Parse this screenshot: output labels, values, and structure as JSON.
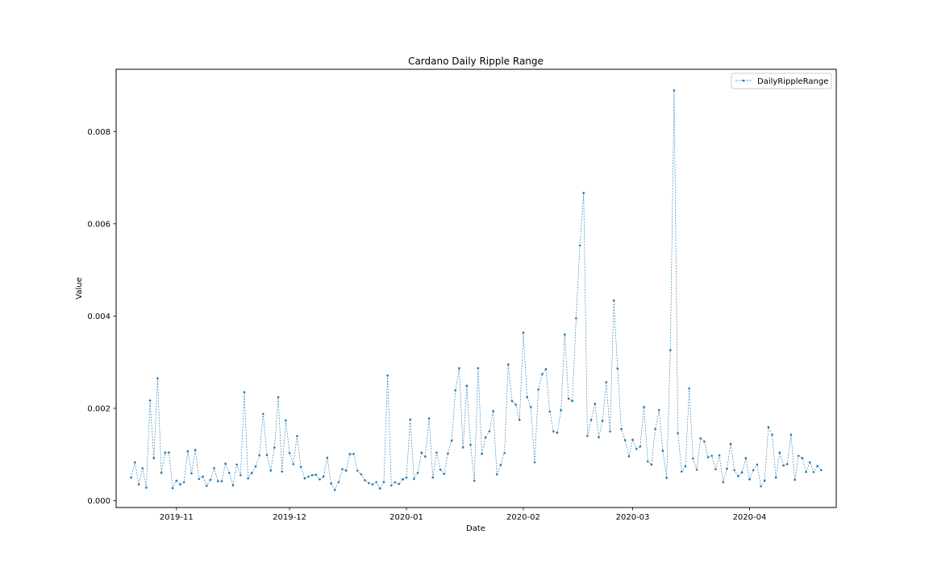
{
  "chart_data": {
    "type": "line",
    "title": "Cardano Daily Ripple Range",
    "xlabel": "Date",
    "ylabel": "Value",
    "ylim": [
      -0.00015,
      0.00935
    ],
    "xlim": [
      "2019-10-16",
      "2020-04-24"
    ],
    "x_start": "2019-10-20",
    "x_tick_labels": [
      "2019-11",
      "2019-12",
      "2020-01",
      "2020-02",
      "2020-03",
      "2020-04"
    ],
    "x_tick_dates": [
      "2019-11-01",
      "2019-12-01",
      "2020-01-01",
      "2020-02-01",
      "2020-03-01",
      "2020-04-01"
    ],
    "y_ticks": [
      0.0,
      0.002,
      0.004,
      0.006,
      0.008
    ],
    "y_tick_labels": [
      "0.000",
      "0.002",
      "0.004",
      "0.006",
      "0.008"
    ],
    "grid": false,
    "legend_position": "top-right",
    "color": "#1f77b4",
    "line_style": "dashed",
    "marker": "point",
    "series": [
      {
        "name": "DailyRippleRange",
        "values": [
          0.0005,
          0.00083,
          0.00035,
          0.0007,
          0.00028,
          0.00217,
          0.00092,
          0.00265,
          0.0006,
          0.00104,
          0.00104,
          0.00027,
          0.00043,
          0.00035,
          0.0004,
          0.00107,
          0.00059,
          0.0011,
          0.00047,
          0.00052,
          0.00032,
          0.00045,
          0.0007,
          0.00042,
          0.00042,
          0.0008,
          0.0006,
          0.00033,
          0.00078,
          0.00055,
          0.00235,
          0.00048,
          0.0006,
          0.00074,
          0.00098,
          0.00188,
          0.00099,
          0.00065,
          0.00115,
          0.00224,
          0.00063,
          0.00174,
          0.00103,
          0.00079,
          0.0014,
          0.00073,
          0.00048,
          0.00052,
          0.00055,
          0.00056,
          0.00046,
          0.00052,
          0.00093,
          0.00037,
          0.00023,
          0.0004,
          0.00068,
          0.00065,
          0.00101,
          0.00101,
          0.00065,
          0.00057,
          0.00044,
          0.00038,
          0.00035,
          0.0004,
          0.00026,
          0.0004,
          0.00271,
          0.00033,
          0.0004,
          0.00036,
          0.00046,
          0.0005,
          0.00176,
          0.00047,
          0.0006,
          0.00104,
          0.00095,
          0.00178,
          0.0005,
          0.00104,
          0.00067,
          0.00058,
          0.00102,
          0.0013,
          0.00239,
          0.00287,
          0.00115,
          0.00249,
          0.00121,
          0.00043,
          0.00287,
          0.00101,
          0.00137,
          0.0015,
          0.00194,
          0.00057,
          0.00077,
          0.00103,
          0.00295,
          0.00216,
          0.00208,
          0.00175,
          0.00364,
          0.00224,
          0.00203,
          0.00083,
          0.00241,
          0.00274,
          0.00285,
          0.00193,
          0.0015,
          0.00147,
          0.00196,
          0.0036,
          0.00221,
          0.00216,
          0.00395,
          0.00553,
          0.00667,
          0.0014,
          0.00175,
          0.0021,
          0.00137,
          0.00173,
          0.00257,
          0.0015,
          0.00434,
          0.00286,
          0.00155,
          0.00131,
          0.00096,
          0.00132,
          0.00112,
          0.00117,
          0.00203,
          0.00085,
          0.00078,
          0.00155,
          0.00196,
          0.00108,
          0.00049,
          0.00326,
          0.00889,
          0.00146,
          0.00063,
          0.00074,
          0.00243,
          0.00091,
          0.00067,
          0.00135,
          0.00128,
          0.00094,
          0.00097,
          0.00068,
          0.00098,
          0.0004,
          0.00069,
          0.00123,
          0.00066,
          0.00053,
          0.00061,
          0.00092,
          0.00046,
          0.00066,
          0.00078,
          0.00031,
          0.00043,
          0.00159,
          0.00143,
          0.0005,
          0.00104,
          0.00076,
          0.00079,
          0.00143,
          0.00045,
          0.00097,
          0.00092,
          0.00062,
          0.00083,
          0.00062,
          0.00075,
          0.00066
        ]
      }
    ]
  }
}
